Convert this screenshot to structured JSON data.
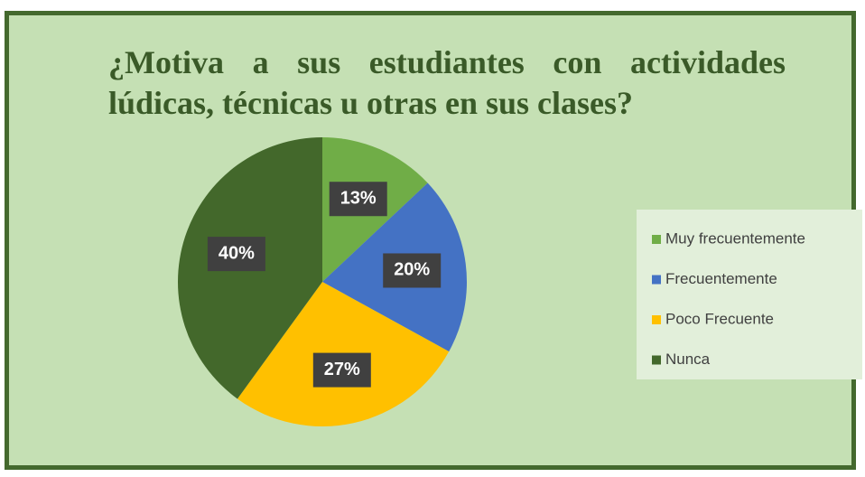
{
  "chart_data": {
    "type": "pie",
    "title": "¿Motiva a sus estudiantes con actividades lúdicas, técnicas u otras en sus clases?",
    "categories": [
      "Muy frecuentemente",
      "Frecuentemente",
      "Poco Frecuente",
      "Nunca"
    ],
    "values": [
      13,
      20,
      27,
      40
    ],
    "value_labels": [
      "13%",
      "20%",
      "27%",
      "40%"
    ],
    "colors": [
      "#70ad47",
      "#4472c4",
      "#ffc000",
      "#43682b"
    ],
    "legend": "right"
  }
}
